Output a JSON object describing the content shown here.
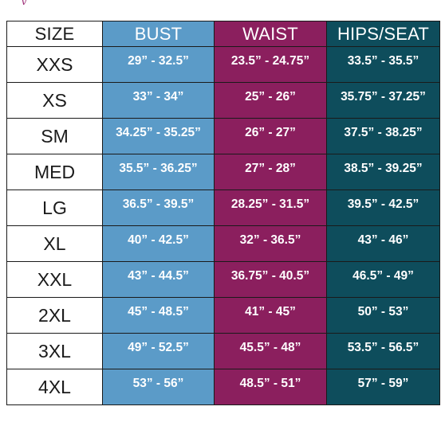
{
  "colors": {
    "bust": "#5b9bc8",
    "waist": "#8b1f5e",
    "hips": "#0e4d5c",
    "size": "#ffffff",
    "border": "#1a1a1a"
  },
  "headers": {
    "size": "SIZE",
    "bust": "BUST",
    "waist": "WAIST",
    "hips": "HIPS/SEAT"
  },
  "rows": [
    {
      "size": "XXS",
      "bust": "29” - 32.5”",
      "waist": "23.5” - 24.75”",
      "hips": "33.5” - 35.5”"
    },
    {
      "size": "XS",
      "bust": "33” - 34”",
      "waist": "25” - 26”",
      "hips": "35.75” - 37.25”"
    },
    {
      "size": "SM",
      "bust": "34.25” - 35.25”",
      "waist": "26” - 27”",
      "hips": "37.5” - 38.25”"
    },
    {
      "size": "MED",
      "bust": "35.5” - 36.25”",
      "waist": "27” - 28”",
      "hips": "38.5” - 39.25”"
    },
    {
      "size": "LG",
      "bust": "36.5” - 39.5”",
      "waist": "28.25” - 31.5”",
      "hips": "39.5” - 42.5”"
    },
    {
      "size": "XL",
      "bust": "40” - 42.5”",
      "waist": "32” - 36.5”",
      "hips": "43” - 46”"
    },
    {
      "size": "XXL",
      "bust": "43” - 44.5”",
      "waist": "36.75” - 40.5”",
      "hips": "46.5” - 49”"
    },
    {
      "size": "2XL",
      "bust": "45” - 48.5”",
      "waist": "41” - 45”",
      "hips": "50” - 53”"
    },
    {
      "size": "3XL",
      "bust": "49” - 52.5”",
      "waist": "45.5” - 48”",
      "hips": "53.5” - 56.5”"
    },
    {
      "size": "4XL",
      "bust": "53” - 56”",
      "waist": "48.5” - 51”",
      "hips": "57” - 59”"
    }
  ]
}
